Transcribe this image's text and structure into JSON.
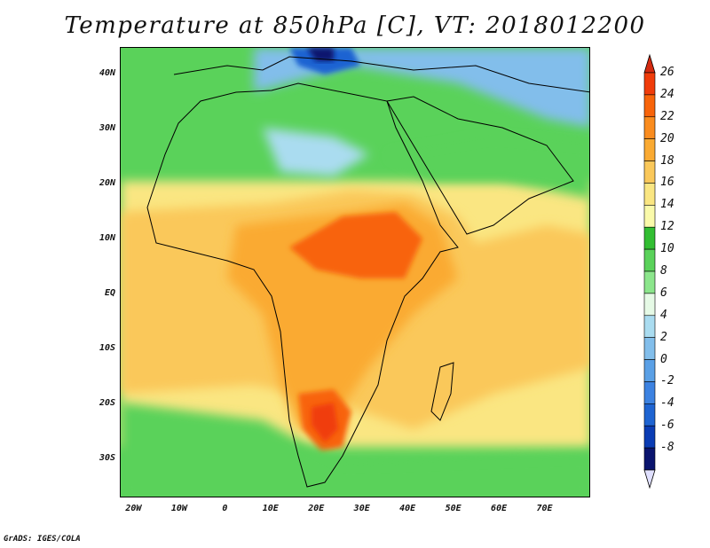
{
  "title": "Temperature at 850hPa [C], VT: 2018012200",
  "credit": "GrADS: IGES/COLA",
  "map": {
    "lon_range": [
      -23,
      80
    ],
    "lat_range": [
      -37,
      45
    ],
    "lat_ticks": [
      {
        "value": 40,
        "label": "40N"
      },
      {
        "value": 30,
        "label": "30N"
      },
      {
        "value": 20,
        "label": "20N"
      },
      {
        "value": 10,
        "label": "10N"
      },
      {
        "value": 0,
        "label": "EQ"
      },
      {
        "value": -10,
        "label": "10S"
      },
      {
        "value": -20,
        "label": "20S"
      },
      {
        "value": -30,
        "label": "30S"
      }
    ],
    "lon_ticks": [
      {
        "value": -20,
        "label": "20W"
      },
      {
        "value": -10,
        "label": "10W"
      },
      {
        "value": 0,
        "label": "0"
      },
      {
        "value": 10,
        "label": "10E"
      },
      {
        "value": 20,
        "label": "20E"
      },
      {
        "value": 30,
        "label": "30E"
      },
      {
        "value": 40,
        "label": "40E"
      },
      {
        "value": 50,
        "label": "50E"
      },
      {
        "value": 60,
        "label": "60E"
      },
      {
        "value": 70,
        "label": "70E"
      }
    ]
  },
  "colorbar": {
    "labels": [
      "26",
      "24",
      "22",
      "20",
      "18",
      "16",
      "14",
      "12",
      "10",
      "8",
      "6",
      "4",
      "2",
      "0",
      "-2",
      "-4",
      "-6",
      "-8"
    ],
    "top_color": "#d42a10",
    "bottom_color": "#e0e0ff",
    "colors": [
      "#f03c0a",
      "#f8640a",
      "#fa8c1e",
      "#faaa32",
      "#fac85a",
      "#fae682",
      "#fafaaa",
      "#32be32",
      "#5ad25a",
      "#8ce68c",
      "#e6fae6",
      "#aadcf0",
      "#82beeb",
      "#5aa0e6",
      "#3c82e1",
      "#1e64d2",
      "#0a3cb4",
      "#0a146e"
    ]
  }
}
